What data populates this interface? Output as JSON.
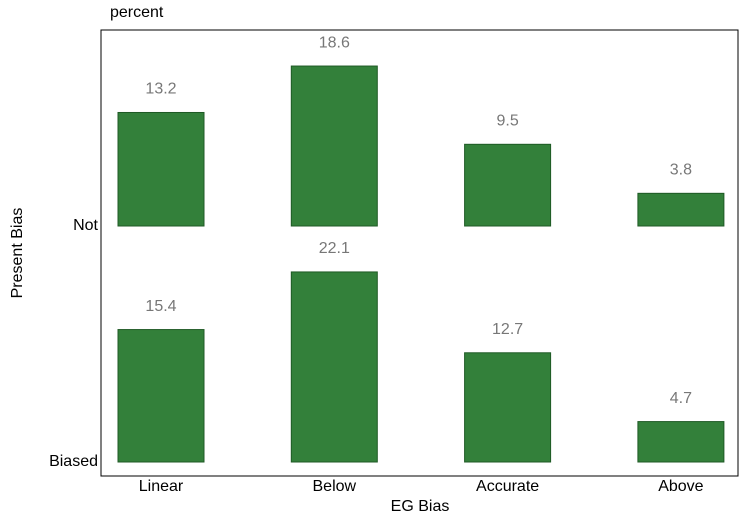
{
  "chart_data": {
    "type": "bar",
    "title": "percent",
    "x_label": "EG Bias",
    "y_label": "Present Bias",
    "categories": [
      "Linear",
      "Below",
      "Accurate",
      "Above"
    ],
    "color": "#33803a",
    "series": [
      {
        "name": "Not",
        "values": [
          13.2,
          18.6,
          9.5,
          3.8
        ]
      },
      {
        "name": "Biased",
        "values": [
          15.4,
          22.1,
          12.7,
          4.7
        ]
      }
    ]
  }
}
